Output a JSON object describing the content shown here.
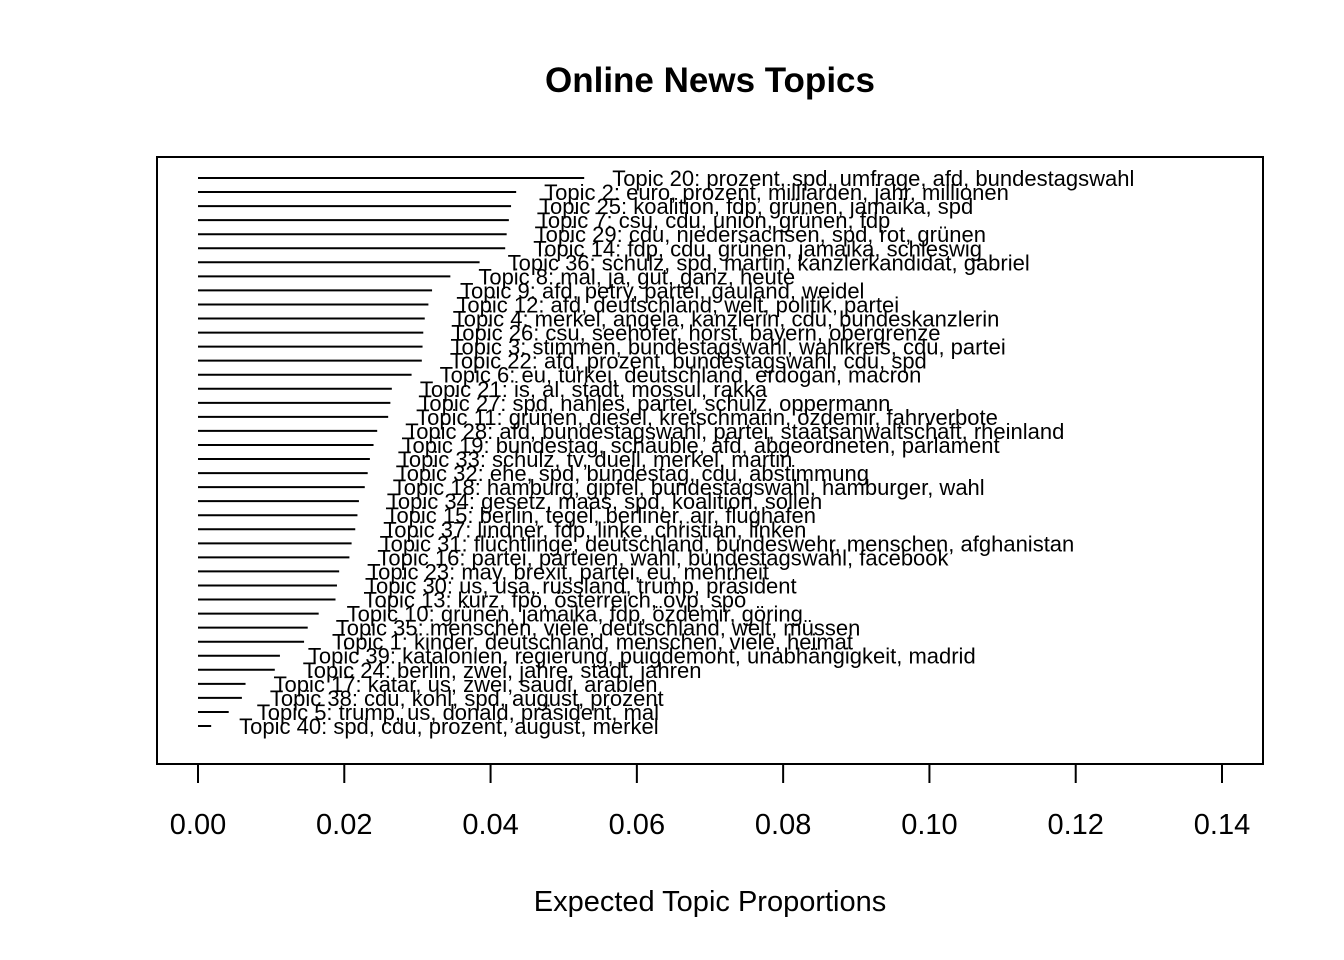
{
  "chart_data": {
    "type": "bar",
    "orientation": "horizontal",
    "title": "Online News Topics",
    "xlabel": "Expected Topic Proportions",
    "ylabel": "",
    "xlim": [
      0,
      0.14
    ],
    "xticks": [
      0,
      0.02,
      0.04,
      0.06,
      0.08,
      0.1,
      0.12,
      0.14
    ],
    "xtick_labels": [
      "0.00",
      "0.02",
      "0.04",
      "0.06",
      "0.08",
      "0.10",
      "0.12",
      "0.14"
    ],
    "grid": false,
    "legend": "none",
    "items": [
      {
        "label": "Topic 20: prozent, spd, umfrage, afd, bundestagswahl",
        "value": 0.0528
      },
      {
        "label": "Topic 2: euro, prozent, milliarden, jahr, millionen",
        "value": 0.0435
      },
      {
        "label": "Topic 25: koalition, fdp, grünen, jamaika, spd",
        "value": 0.0428
      },
      {
        "label": "Topic 7: csu, cdu, union, grünen, fdp",
        "value": 0.0425
      },
      {
        "label": "Topic 29: cdu, niedersachsen, spd, rot, grünen",
        "value": 0.0422
      },
      {
        "label": "Topic 14: fdp, cdu, grünen, jamaika, schleswig",
        "value": 0.042
      },
      {
        "label": "Topic 36: schulz, spd, martin, kanzlerkandidat, gabriel",
        "value": 0.0385
      },
      {
        "label": "Topic 8: mal, ja, gut, ganz, heute",
        "value": 0.0345
      },
      {
        "label": "Topic 9: afd, petry, partei, gauland, weidel",
        "value": 0.032
      },
      {
        "label": "Topic 12: afd, deutschland, welt, politik, partei",
        "value": 0.0315
      },
      {
        "label": "Topic 4: merkel, angela, kanzlerin, cdu, bundeskanzlerin",
        "value": 0.031
      },
      {
        "label": "Topic 26: csu, seehofer, horst, bayern, obergrenze",
        "value": 0.0308
      },
      {
        "label": "Topic 3: stimmen, bundestagswahl, wahlkreis, cdu, partei",
        "value": 0.0307
      },
      {
        "label": "Topic 22: afd, prozent, bundestagswahl, cdu, spd",
        "value": 0.0306
      },
      {
        "label": "Topic 6: eu, türkei, deutschland, erdogan, macron",
        "value": 0.0292
      },
      {
        "label": "Topic 21: is, al, stadt, mossul, rakka",
        "value": 0.0265
      },
      {
        "label": "Topic 27: spd, nahles, partei, schulz, oppermann",
        "value": 0.0263
      },
      {
        "label": "Topic 11: grünen, diesel, kretschmann, özdemir, fahrverbote",
        "value": 0.026
      },
      {
        "label": "Topic 28: afd, bundestagswahl, partei, staatsanwaltschaft, rheinland",
        "value": 0.0245
      },
      {
        "label": "Topic 19: bundestag, schäuble, afd, abgeordneten, parlament",
        "value": 0.024
      },
      {
        "label": "Topic 33: schulz, tv, duell, merkel, martin",
        "value": 0.0235
      },
      {
        "label": "Topic 32: ehe, spd, bundestag, cdu, abstimmung",
        "value": 0.0232
      },
      {
        "label": "Topic 18: hamburg, gipfel, bundestagswahl, hamburger, wahl",
        "value": 0.0228
      },
      {
        "label": "Topic 34: gesetz, maas, spd, koalition, sollen",
        "value": 0.022
      },
      {
        "label": "Topic 15: berlin, tegel, berliner, air, flughafen",
        "value": 0.0218
      },
      {
        "label": "Topic 37: lindner, fdp, linke, christian, linken",
        "value": 0.0215
      },
      {
        "label": "Topic 31: flüchtlinge, deutschland, bundeswehr, menschen, afghanistan",
        "value": 0.021
      },
      {
        "label": "Topic 16: partei, parteien, wahl, bundestagswahl, facebook",
        "value": 0.0207
      },
      {
        "label": "Topic 23: may, brexit, partei, eu, mehrheit",
        "value": 0.0193
      },
      {
        "label": "Topic 30: us, usa, russland, trump, präsident",
        "value": 0.019
      },
      {
        "label": "Topic 13: kurz, fpö, österreich, övp, spö",
        "value": 0.0188
      },
      {
        "label": "Topic 10: grünen, jamaika, fdp, özdemir, göring",
        "value": 0.0165
      },
      {
        "label": "Topic 35: menschen, viele, deutschland, welt, müssen",
        "value": 0.015
      },
      {
        "label": "Topic 1: kinder, deutschland, menschen, viele, heimat",
        "value": 0.0145
      },
      {
        "label": "Topic 39: katalonien, regierung, puigdemont, unabhängigkeit, madrid",
        "value": 0.0112
      },
      {
        "label": "Topic 24: berlin, zwei, jahre, stadt, jahren",
        "value": 0.0105
      },
      {
        "label": "Topic 17: katar, us, zwei, saudi, arabien",
        "value": 0.0065
      },
      {
        "label": "Topic 38: cdu, kohl, spd, august, prozent",
        "value": 0.006
      },
      {
        "label": "Topic 5: trump, us, donald, präsident, mal",
        "value": 0.0042
      },
      {
        "label": "Topic 40: spd, cdu, prozent, august, merkel",
        "value": 0.0018
      }
    ]
  }
}
